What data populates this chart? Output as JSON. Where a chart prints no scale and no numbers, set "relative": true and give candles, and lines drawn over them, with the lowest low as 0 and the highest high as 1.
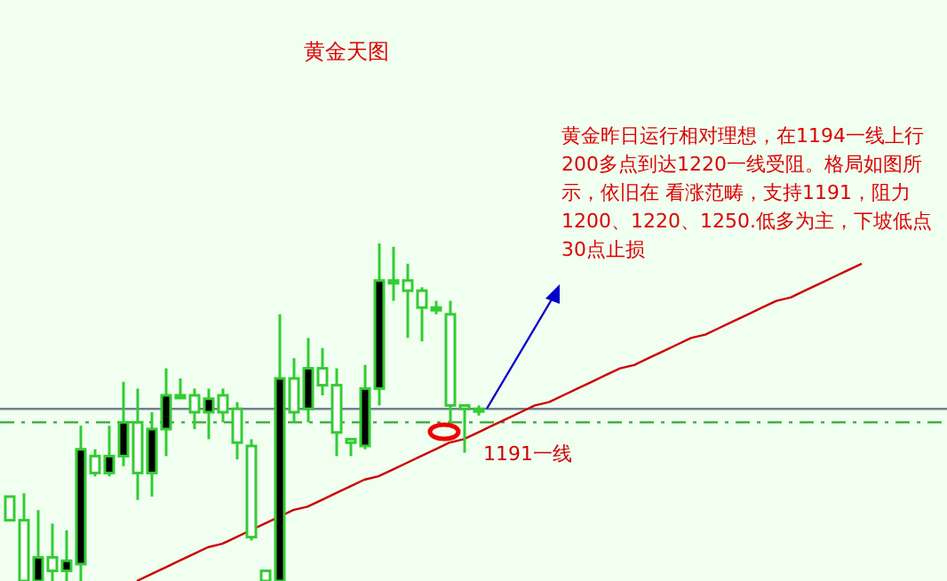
{
  "chart_data": {
    "type": "candlestick",
    "title": "黄金天图",
    "relative": true,
    "categories": [
      null,
      null,
      null,
      null,
      null,
      null,
      null,
      null,
      null,
      null,
      null,
      null,
      null,
      null,
      null,
      null,
      null,
      null,
      null,
      null,
      null,
      null,
      null,
      null,
      null,
      null,
      null,
      null,
      null,
      null,
      null,
      null,
      null,
      null,
      null,
      null,
      null,
      null,
      null,
      null,
      null,
      null,
      null,
      null,
      null,
      null,
      null,
      null,
      null,
      null,
      null,
      null,
      null,
      null,
      null,
      null,
      null,
      null,
      null,
      null,
      null
    ],
    "ohlc": [
      [
        0.25,
        0.25,
        0.18,
        0.18
      ],
      [
        0.18,
        0.26,
        0,
        0
      ],
      [
        0,
        0.21,
        0,
        0.07
      ],
      [
        0.07,
        0.17,
        0,
        0.03
      ],
      [
        0.03,
        0.15,
        0,
        0.06
      ],
      [
        0.05,
        0.46,
        0,
        0.39
      ],
      [
        0.37,
        0.39,
        0.31,
        0.32
      ],
      [
        0.32,
        0.46,
        0.31,
        0.37
      ],
      [
        0.37,
        0.59,
        0.34,
        0.47
      ],
      [
        0.47,
        0.57,
        0.24,
        0.32
      ],
      [
        0.32,
        0.5,
        0.25,
        0.45
      ],
      [
        0.45,
        0.63,
        0.37,
        0.55
      ],
      [
        0.55,
        0.6,
        0.54,
        0.55
      ],
      [
        0.55,
        0.57,
        0.45,
        0.5
      ],
      [
        0.5,
        0.57,
        0.42,
        0.54
      ],
      [
        0.55,
        0.57,
        0.47,
        0.5
      ],
      [
        0.51,
        0.53,
        0.36,
        0.41
      ],
      [
        0.4,
        0.42,
        0.12,
        0.13
      ],
      [
        0.03,
        0.03,
        0,
        0
      ],
      [
        0,
        0.79,
        0,
        0.6
      ],
      [
        0.6,
        0.66,
        0.47,
        0.5
      ],
      [
        0.51,
        0.72,
        0.47,
        0.63
      ],
      [
        0.63,
        0.69,
        0.55,
        0.58
      ],
      [
        0.58,
        0.63,
        0.37,
        0.44
      ],
      [
        0.42,
        0.42,
        0.37,
        0.41
      ],
      [
        0.4,
        0.64,
        0.39,
        0.57
      ],
      [
        0.57,
        1,
        0.52,
        0.89
      ],
      [
        0.89,
        0.99,
        0.83,
        0.89
      ],
      [
        0.89,
        0.94,
        0.72,
        0.86
      ],
      [
        0.86,
        0.87,
        0.71,
        0.81
      ],
      [
        0.81,
        0.83,
        0.79,
        0.81
      ],
      [
        0.79,
        0.83,
        0.46,
        0.52
      ],
      [
        0.52,
        0.52,
        0.38,
        0.51
      ],
      [
        0.51,
        0.52,
        0.49,
        0.51
      ],
      null,
      null,
      null,
      null,
      null,
      null,
      null,
      null,
      null,
      null,
      null,
      null,
      null,
      null,
      null,
      null,
      null,
      null,
      null,
      null,
      null,
      null,
      null,
      null,
      null,
      null,
      null
    ],
    "color": "#33cc33",
    "series": [
      {
        "type": "line",
        "color": "#cc0000",
        "values": [
          null,
          null,
          null,
          null,
          null,
          null,
          null,
          null,
          null,
          0.0,
          0.02,
          0.04,
          0.06,
          0.08,
          0.1,
          0.11,
          0.13,
          0.15,
          0.17,
          0.19,
          0.21,
          0.22,
          0.24,
          0.26,
          0.28,
          0.3,
          0.31,
          0.33,
          0.35,
          0.37,
          0.39,
          0.41,
          0.42,
          0.44,
          0.46,
          0.48,
          0.5,
          0.52,
          0.53,
          0.55,
          0.57,
          0.59,
          0.61,
          0.63,
          0.64,
          0.66,
          0.68,
          0.7,
          0.72,
          0.73,
          0.75,
          0.77,
          0.79,
          0.81,
          0.83,
          0.84,
          0.86,
          0.88,
          0.9,
          0.92,
          0.94
        ]
      }
    ],
    "ref_lines": [
      {
        "axis": "y",
        "value": 0.51,
        "color": "#708090",
        "line_style": "solid"
      },
      {
        "axis": "y",
        "value": 0.47,
        "color": "#33aa33",
        "line_style": "dashed"
      }
    ],
    "annotations": [
      "黄金昨日运行相对理想，在1194一线上行200多点到达1220一线受阻。格局如图所示，依旧在 看涨范畴，支持1191，阻力1200、1220、1250.低多为主，下坡低点30点止损",
      "1191一线"
    ]
  }
}
